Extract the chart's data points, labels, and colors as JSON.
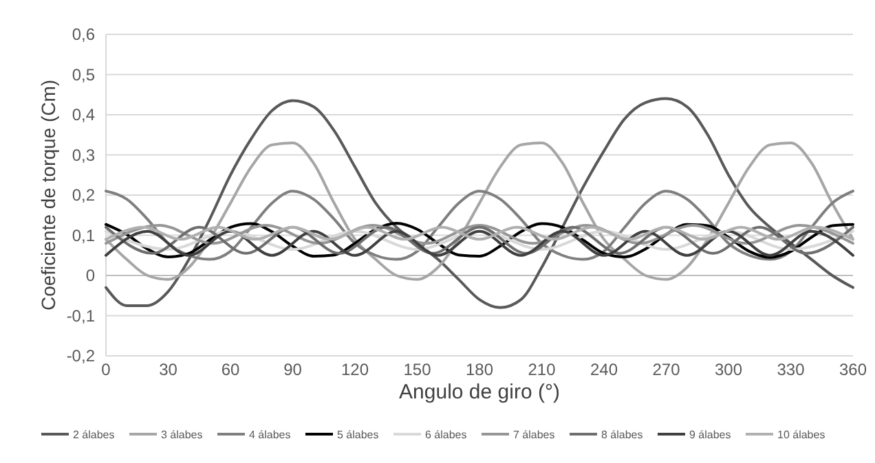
{
  "chart_data": {
    "type": "line",
    "xlabel": "Angulo de giro (°)",
    "ylabel": "Coeficiente de torque (Cm)",
    "xlim": [
      0,
      360
    ],
    "xticks": [
      0,
      30,
      60,
      90,
      120,
      150,
      180,
      210,
      240,
      270,
      300,
      330,
      360
    ],
    "ylim": [
      -0.2,
      0.6
    ],
    "yticks": [
      {
        "value": -0.2,
        "label": "-0,2"
      },
      {
        "value": -0.1,
        "label": "-0,1"
      },
      {
        "value": 0,
        "label": "0"
      },
      {
        "value": 0.1,
        "label": "0,1"
      },
      {
        "value": 0.2,
        "label": "0,2"
      },
      {
        "value": 0.3,
        "label": "0,3"
      },
      {
        "value": 0.4,
        "label": "0,4"
      },
      {
        "value": 0.5,
        "label": "0,5"
      },
      {
        "value": 0.6,
        "label": "0,6"
      }
    ],
    "grid": "y",
    "legend": "bottom",
    "x": [
      0,
      10,
      20,
      30,
      40,
      50,
      60,
      70,
      80,
      90,
      100,
      110,
      120,
      130,
      140,
      150,
      160,
      170,
      180,
      190,
      200,
      210,
      220,
      230,
      240,
      250,
      260,
      270,
      280,
      290,
      300,
      310,
      320,
      330,
      340,
      350,
      360
    ],
    "series": [
      {
        "name": "2 álabes",
        "color": "#595959",
        "values": [
          -0.03,
          -0.075,
          -0.075,
          -0.04,
          0.04,
          0.14,
          0.25,
          0.34,
          0.41,
          0.435,
          0.42,
          0.36,
          0.27,
          0.18,
          0.12,
          0.08,
          0.04,
          -0.01,
          -0.06,
          -0.08,
          -0.06,
          0.02,
          0.12,
          0.22,
          0.31,
          0.39,
          0.43,
          0.44,
          0.42,
          0.35,
          0.25,
          0.17,
          0.12,
          0.08,
          0.04,
          0,
          -0.03
        ]
      },
      {
        "name": "3 álabes",
        "color": "#a6a6a6",
        "values": [
          0.09,
          0.04,
          0,
          -0.01,
          0.02,
          0.09,
          0.18,
          0.27,
          0.325,
          0.33,
          0.28,
          0.18,
          0.09,
          0.04,
          0,
          -0.01,
          0.02,
          0.09,
          0.18,
          0.27,
          0.325,
          0.33,
          0.28,
          0.18,
          0.09,
          0.04,
          0,
          -0.01,
          0.02,
          0.09,
          0.18,
          0.27,
          0.325,
          0.33,
          0.28,
          0.18,
          0.09
        ]
      },
      {
        "name": "4 álabes",
        "color": "#7f7f7f",
        "values": [
          0.21,
          0.19,
          0.14,
          0.08,
          0.05,
          0.04,
          0.06,
          0.12,
          0.18,
          0.21,
          0.19,
          0.14,
          0.08,
          0.05,
          0.04,
          0.06,
          0.12,
          0.18,
          0.21,
          0.19,
          0.14,
          0.08,
          0.05,
          0.04,
          0.06,
          0.12,
          0.18,
          0.21,
          0.19,
          0.14,
          0.08,
          0.05,
          0.04,
          0.06,
          0.12,
          0.18,
          0.21
        ]
      },
      {
        "name": "5 álabes",
        "color": "#000000",
        "values": [
          0.127,
          0.102,
          0.066,
          0.046,
          0.055,
          0.088,
          0.12,
          0.129,
          0.109,
          0.073,
          0.048,
          0.051,
          0.08,
          0.115,
          0.13,
          0.115,
          0.08,
          0.051,
          0.048,
          0.073,
          0.109,
          0.129,
          0.12,
          0.088,
          0.055,
          0.046,
          0.066,
          0.102,
          0.127,
          0.124,
          0.095,
          0.06,
          0.045,
          0.06,
          0.095,
          0.124,
          0.127
        ]
      },
      {
        "name": "6 álabes",
        "color": "#d9d9d9",
        "x": [
          0,
          30,
          60,
          90,
          120,
          150,
          180,
          210,
          240,
          270,
          300,
          330,
          360
        ],
        "values": [
          0.11,
          0.065,
          0.11,
          0.065,
          0.11,
          0.065,
          0.11,
          0.065,
          0.11,
          0.065,
          0.11,
          0.065,
          0.11
        ]
      },
      {
        "name": "7 álabes",
        "color": "#969696",
        "x": [
          0,
          25.7,
          51.4,
          77.1,
          102.9,
          128.6,
          154.3,
          180,
          205.7,
          231.4,
          257.1,
          282.9,
          308.6,
          334.3,
          360
        ],
        "values": [
          0.08,
          0.125,
          0.08,
          0.125,
          0.08,
          0.125,
          0.08,
          0.125,
          0.08,
          0.125,
          0.08,
          0.125,
          0.08,
          0.125,
          0.08
        ]
      },
      {
        "name": "8 álabes",
        "color": "#6e6e6e",
        "x": [
          0,
          22.5,
          45,
          67.5,
          90,
          112.5,
          135,
          157.5,
          180,
          202.5,
          225,
          247.5,
          270,
          292.5,
          315,
          337.5,
          360
        ],
        "values": [
          0.12,
          0.055,
          0.12,
          0.055,
          0.12,
          0.055,
          0.12,
          0.055,
          0.12,
          0.055,
          0.12,
          0.055,
          0.12,
          0.055,
          0.12,
          0.055,
          0.12
        ]
      },
      {
        "name": "9 álabes",
        "color": "#404040",
        "x": [
          0,
          20,
          40,
          60,
          80,
          100,
          120,
          140,
          160,
          180,
          200,
          220,
          240,
          260,
          280,
          300,
          320,
          340,
          360
        ],
        "values": [
          0.05,
          0.11,
          0.05,
          0.11,
          0.05,
          0.11,
          0.05,
          0.11,
          0.05,
          0.11,
          0.05,
          0.11,
          0.05,
          0.11,
          0.05,
          0.11,
          0.05,
          0.11,
          0.05
        ]
      },
      {
        "name": "10 álabes",
        "color": "#b0b0b0",
        "x": [
          0,
          18,
          36,
          54,
          72,
          90,
          108,
          126,
          144,
          162,
          180,
          198,
          216,
          234,
          252,
          270,
          288,
          306,
          324,
          342,
          360
        ],
        "values": [
          0.09,
          0.12,
          0.09,
          0.12,
          0.09,
          0.12,
          0.09,
          0.12,
          0.09,
          0.12,
          0.09,
          0.12,
          0.09,
          0.12,
          0.09,
          0.12,
          0.09,
          0.12,
          0.09,
          0.12,
          0.09
        ]
      }
    ]
  }
}
